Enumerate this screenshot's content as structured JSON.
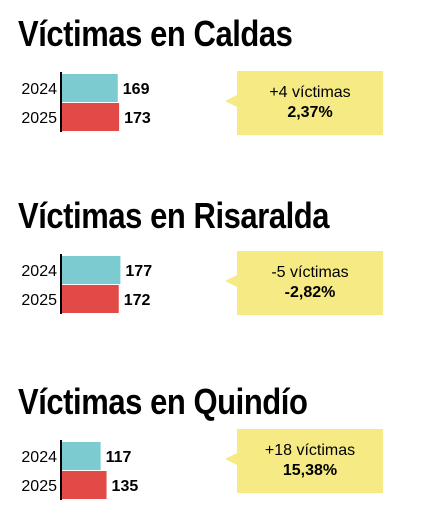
{
  "colors": {
    "bar_2024": "#7ccbd1",
    "bar_2025": "#e24a47",
    "callout_bg": "#f5ea84"
  },
  "chart_data": [
    {
      "type": "bar",
      "title": "Víctimas en Caldas",
      "categories": [
        "2024",
        "2025"
      ],
      "values": [
        169,
        173
      ],
      "callout": {
        "line1": "+4 víctimas",
        "line2": "2,37%"
      }
    },
    {
      "type": "bar",
      "title": "Víctimas en Risaralda",
      "categories": [
        "2024",
        "2025"
      ],
      "values": [
        177,
        172
      ],
      "callout": {
        "line1": "-5 víctimas",
        "line2": "-2,82%"
      }
    },
    {
      "type": "bar",
      "title": "Víctimas en Quindío",
      "categories": [
        "2024",
        "2025"
      ],
      "values": [
        117,
        135
      ],
      "callout": {
        "line1": "+18 víctimas",
        "line2": "15,38%"
      }
    }
  ]
}
